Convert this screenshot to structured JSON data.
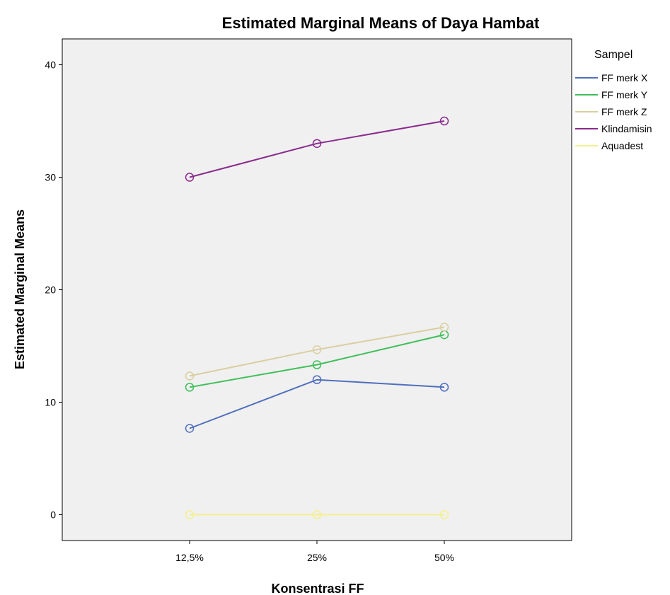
{
  "chart_data": {
    "type": "line",
    "title": "Estimated Marginal Means of Daya Hambat",
    "xlabel": "Konsentrasi FF",
    "ylabel": "Estimated Marginal Means",
    "categories": [
      "12,5%",
      "25%",
      "50%"
    ],
    "ylim": [
      -2.3,
      42.3
    ],
    "yticks": [
      0,
      10,
      20,
      30,
      40
    ],
    "grid": false,
    "legend_title": "Sampel",
    "legend_position": "right",
    "marker": "open-circle",
    "plot_background": "#f0f0f0",
    "series": [
      {
        "name": "FF merk X",
        "color": "#4f6fbd",
        "values": [
          7.67,
          12.0,
          11.33
        ]
      },
      {
        "name": "FF merk Y",
        "color": "#3fbf5a",
        "values": [
          11.33,
          13.33,
          16.0
        ]
      },
      {
        "name": "FF merk Z",
        "color": "#d9cfa0",
        "values": [
          12.33,
          14.67,
          16.67
        ]
      },
      {
        "name": "Klindamisin",
        "color": "#8a2b8d",
        "values": [
          30.0,
          33.0,
          35.0
        ]
      },
      {
        "name": "Aquadest",
        "color": "#f5f08c",
        "values": [
          0.0,
          0.0,
          0.0
        ]
      }
    ]
  }
}
